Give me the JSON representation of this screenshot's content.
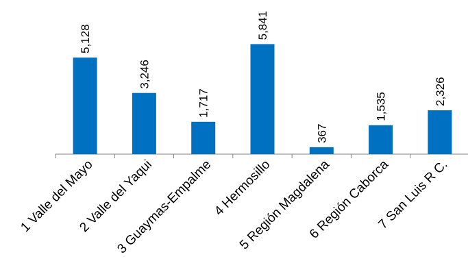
{
  "chart_data": {
    "type": "bar",
    "categories": [
      "1 Valle del Mayo",
      "2 Valle del Yaqui",
      "3 Guaymas-Empalme",
      "4 Hermosillo",
      "5 Región Magdalena",
      "6 Región Caborca",
      "7 San Luis R C."
    ],
    "values": [
      5128,
      3246,
      1717,
      5841,
      367,
      1535,
      2326
    ],
    "data_labels": [
      "5,128",
      "3,246",
      "1,717",
      "5,841",
      "367",
      "1,535",
      "2,326"
    ],
    "ylim": [
      0,
      6000
    ],
    "grid": false,
    "legend": "none",
    "colors": {
      "bar": "#0070C0",
      "axis": "#7f7f7f"
    }
  }
}
